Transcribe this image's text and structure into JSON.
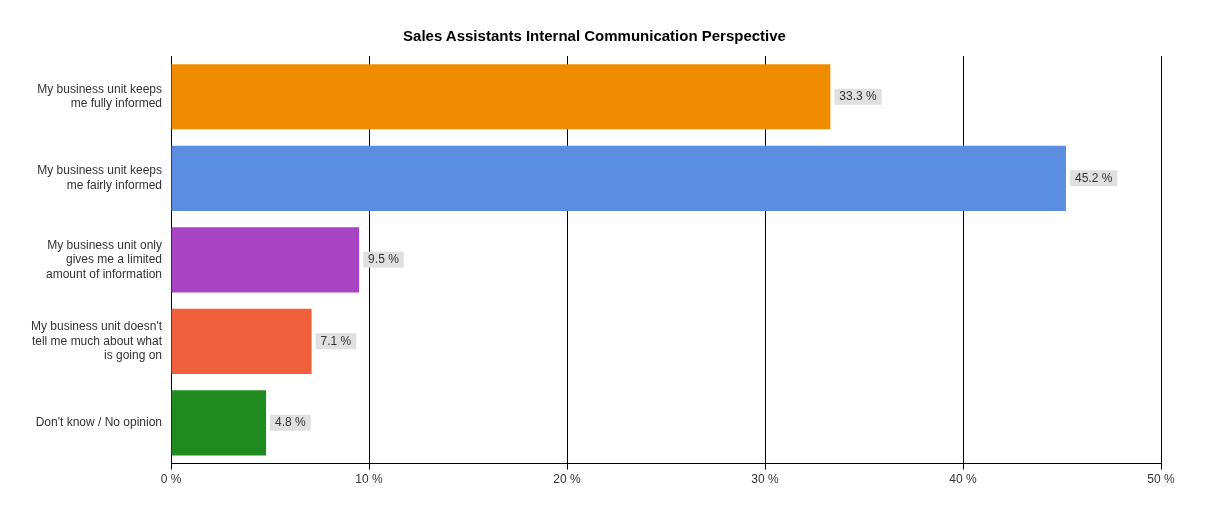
{
  "chart_data": {
    "type": "bar",
    "orientation": "horizontal",
    "title": "Sales Assistants Internal Communication Perspective",
    "categories": [
      "My business unit keeps me fully informed",
      "My business unit keeps me fairly informed",
      "My business unit only gives me a limited amount of information",
      "My business unit doesn't tell me much about what is going on",
      "Don't know / No opinion"
    ],
    "values": [
      33.3,
      45.2,
      9.5,
      7.1,
      4.8
    ],
    "colors": [
      "#f08c00",
      "#5b8ee0",
      "#a843c4",
      "#f0603c",
      "#1f8a1f"
    ],
    "value_labels": [
      "33.3 %",
      "45.2 %",
      "9.5 %",
      "7.1 %",
      "4.8 %"
    ],
    "xlim": [
      0,
      50
    ],
    "xticks": [
      {
        "value": 0,
        "label": "0 %"
      },
      {
        "value": 10,
        "label": "10 %"
      },
      {
        "value": 20,
        "label": "20 %"
      },
      {
        "value": 30,
        "label": "30 %"
      },
      {
        "value": 40,
        "label": "40 %"
      },
      {
        "value": 50,
        "label": "50 %"
      }
    ],
    "grid": "x",
    "legend": false
  }
}
